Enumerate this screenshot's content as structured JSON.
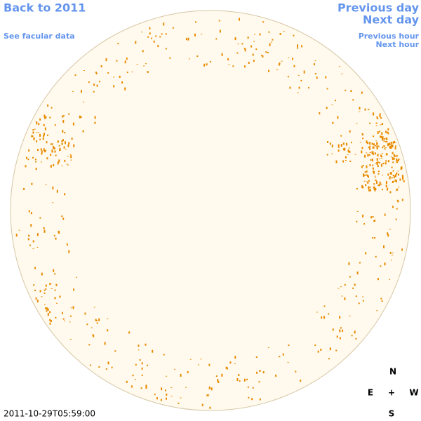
{
  "navigation": {
    "back": "Back to 2011",
    "facular": "See facular data",
    "previous_day": "Previous day",
    "next_day": "Next day",
    "previous_hour": "Previous hour",
    "next_hour": "Next hour"
  },
  "compass": {
    "north": "N",
    "east": "E",
    "center": "+",
    "west": "W",
    "south": "S"
  },
  "timestamp": "2011-10-29T05:59:00"
}
